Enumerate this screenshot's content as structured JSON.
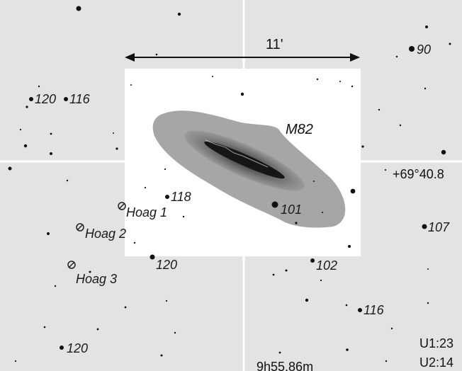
{
  "chart": {
    "scale_label": "11'",
    "object_label": "M82",
    "dec_label": "+69°40.8",
    "ra_label": "9h55.86m",
    "u1_label": "U1:23",
    "u2_label": "U2:14",
    "star_labels": [
      "90",
      "120",
      "116",
      "118",
      "101",
      "107",
      "102",
      "120",
      "116",
      "120"
    ],
    "hoag_labels": [
      "Hoag 1",
      "Hoag 2",
      "Hoag 3"
    ]
  }
}
